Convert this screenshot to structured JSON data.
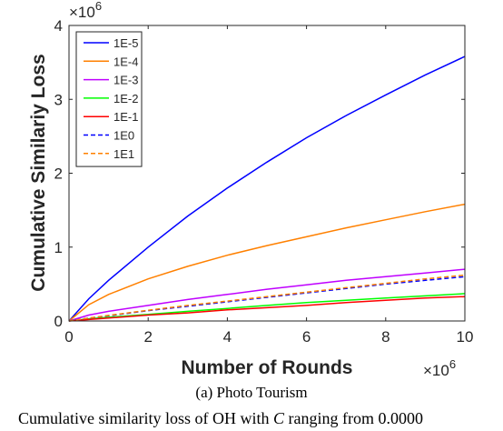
{
  "chart_data": {
    "type": "line",
    "xlabel": "Number of Rounds",
    "ylabel": "Cumulative Similariy Loss",
    "x_multiplier": "×10",
    "x_multiplier_exp": "6",
    "y_multiplier": "×10",
    "y_multiplier_exp": "6",
    "xlim": [
      0,
      10
    ],
    "ylim": [
      0,
      4
    ],
    "xticks": [
      "0",
      "2",
      "4",
      "6",
      "8",
      "10"
    ],
    "yticks": [
      "0",
      "1",
      "2",
      "3",
      "4"
    ],
    "grid": false,
    "legend_position": "top-left",
    "x": [
      0,
      0.5,
      1,
      2,
      3,
      4,
      5,
      6,
      7,
      8,
      9,
      10
    ],
    "series": [
      {
        "name": "1E-5",
        "color": "#0000ff",
        "dash": "solid",
        "values": [
          0,
          0.3,
          0.55,
          1.0,
          1.42,
          1.8,
          2.15,
          2.48,
          2.78,
          3.06,
          3.33,
          3.58
        ]
      },
      {
        "name": "1E-4",
        "color": "#ff8000",
        "dash": "solid",
        "values": [
          0,
          0.22,
          0.36,
          0.57,
          0.74,
          0.89,
          1.02,
          1.14,
          1.26,
          1.37,
          1.48,
          1.58
        ]
      },
      {
        "name": "1E-3",
        "color": "#bf00ff",
        "dash": "solid",
        "values": [
          0,
          0.08,
          0.13,
          0.21,
          0.29,
          0.36,
          0.43,
          0.49,
          0.55,
          0.6,
          0.65,
          0.7
        ]
      },
      {
        "name": "1E-2",
        "color": "#00ff00",
        "dash": "solid",
        "values": [
          0,
          0.03,
          0.05,
          0.09,
          0.13,
          0.17,
          0.21,
          0.25,
          0.28,
          0.31,
          0.34,
          0.37
        ]
      },
      {
        "name": "1E-1",
        "color": "#ff0000",
        "dash": "solid",
        "values": [
          0,
          0.02,
          0.04,
          0.08,
          0.11,
          0.15,
          0.18,
          0.21,
          0.25,
          0.28,
          0.31,
          0.33
        ]
      },
      {
        "name": "1E0",
        "color": "#0000ff",
        "dash": "dashed",
        "values": [
          0,
          0.04,
          0.07,
          0.14,
          0.2,
          0.26,
          0.32,
          0.38,
          0.44,
          0.5,
          0.55,
          0.6
        ]
      },
      {
        "name": "1E1",
        "color": "#ff8000",
        "dash": "dashed",
        "values": [
          0,
          0.04,
          0.075,
          0.145,
          0.21,
          0.27,
          0.33,
          0.39,
          0.45,
          0.51,
          0.57,
          0.62
        ]
      }
    ]
  },
  "caption": {
    "subcaption_label": "(a)",
    "subcaption_text": "Photo Tourism",
    "figure_caption_start": "Cumulative similarity loss of OH with ",
    "figure_caption_var": "C",
    "figure_caption_end": " ranging from 0.0000"
  }
}
